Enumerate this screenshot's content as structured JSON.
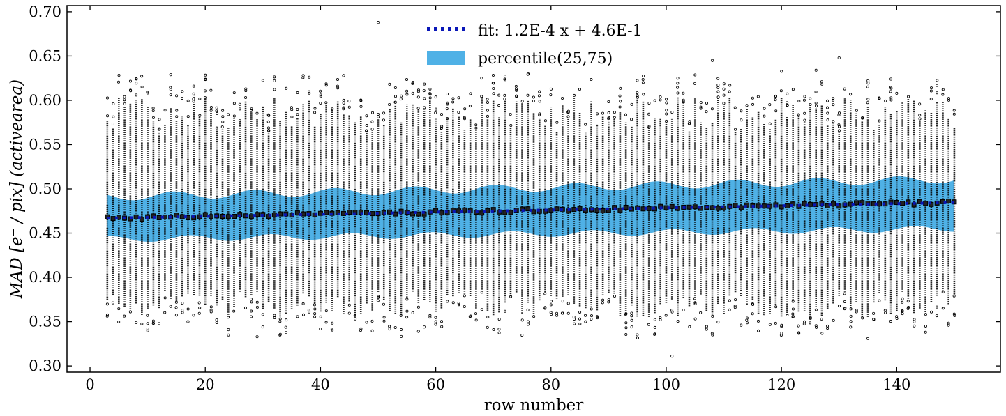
{
  "chart_data": {
    "type": "scatter",
    "title": "",
    "xlabel": "row number",
    "ylabel": "MAD [e⁻ / pix] (activearea)",
    "xlim": [
      -4,
      158
    ],
    "ylim": [
      0.293,
      0.707
    ],
    "xticks": [
      0,
      20,
      40,
      60,
      80,
      100,
      120,
      140
    ],
    "yticks": [
      0.3,
      0.35,
      0.4,
      0.45,
      0.5,
      0.55,
      0.6,
      0.65,
      0.7
    ],
    "ytick_labels": [
      "0.30",
      "0.35",
      "0.40",
      "0.45",
      "0.50",
      "0.55",
      "0.60",
      "0.65",
      "0.70"
    ],
    "grid": false,
    "legend_position": "top-center",
    "rows": {
      "start": 3,
      "end": 150
    },
    "series": [
      {
        "name": "fit: 1.2E-4 x + 4.6E-1",
        "kind": "line",
        "style": "dotted",
        "color": "#0a17b8",
        "slope": 0.00012,
        "intercept": 0.46
      },
      {
        "name": "percentile(25,75)",
        "kind": "band",
        "color": "#4fb1e6",
        "lower_start": 0.443,
        "lower_end": 0.455,
        "upper_start": 0.491,
        "upper_end": 0.511
      }
    ],
    "medians": [
      [
        3,
        0.467
      ],
      [
        20,
        0.468
      ],
      [
        40,
        0.467
      ],
      [
        60,
        0.471
      ],
      [
        80,
        0.474
      ],
      [
        100,
        0.474
      ],
      [
        120,
        0.478
      ],
      [
        140,
        0.481
      ],
      [
        150,
        0.485
      ]
    ],
    "whisker_range": {
      "typical_low": 0.37,
      "typical_high": 0.58
    },
    "outliers": [
      [
        50,
        0.688
      ],
      [
        130,
        0.648
      ],
      [
        108,
        0.645
      ],
      [
        14,
        0.629
      ],
      [
        37,
        0.628
      ],
      [
        44,
        0.628
      ],
      [
        126,
        0.634
      ],
      [
        139,
        0.624
      ],
      [
        101,
        0.311
      ],
      [
        29,
        0.333
      ],
      [
        57,
        0.339
      ],
      [
        24,
        0.341
      ],
      [
        113,
        0.346
      ],
      [
        149,
        0.346
      ],
      [
        11,
        0.348
      ],
      [
        58,
        0.344
      ],
      [
        17,
        0.35
      ]
    ],
    "colors": {
      "points": "#000000",
      "band": "#4fb1e6",
      "fit": "#0a17b8"
    }
  }
}
